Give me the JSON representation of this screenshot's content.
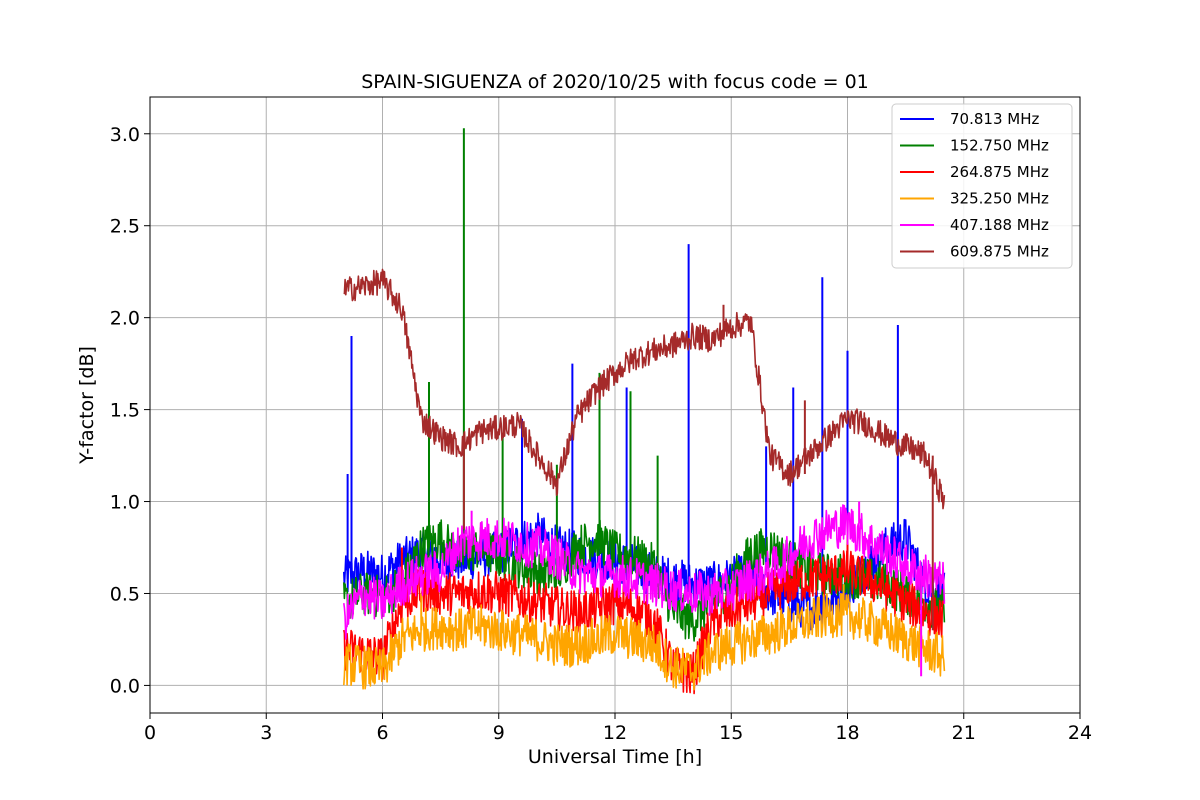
{
  "chart_data": {
    "type": "line",
    "title": "SPAIN-SIGUENZA of 2020/10/25 with focus code = 01",
    "xlabel": "Universal Time [h]",
    "ylabel": "Y-factor [dB]",
    "xlim": [
      0,
      24
    ],
    "ylim": [
      -0.15,
      3.2
    ],
    "xticks": [
      0,
      3,
      6,
      9,
      12,
      15,
      18,
      21,
      24
    ],
    "xtick_labels": [
      "0",
      "3",
      "6",
      "9",
      "12",
      "15",
      "18",
      "21",
      "24"
    ],
    "yticks": [
      0.0,
      0.5,
      1.0,
      1.5,
      2.0,
      2.5,
      3.0
    ],
    "ytick_labels": [
      "0.0",
      "0.5",
      "1.0",
      "1.5",
      "2.0",
      "2.5",
      "3.0"
    ],
    "grid": true,
    "legend_position": "top-right",
    "x": [
      5.0,
      5.5,
      6.0,
      6.5,
      7.0,
      7.5,
      8.0,
      8.5,
      9.0,
      9.5,
      10.0,
      10.5,
      11.0,
      11.5,
      12.0,
      12.5,
      13.0,
      13.5,
      14.0,
      14.5,
      15.0,
      15.5,
      16.0,
      16.5,
      17.0,
      17.5,
      18.0,
      18.5,
      19.0,
      19.5,
      20.0,
      20.5
    ],
    "series": [
      {
        "name": " 70.813 MHz",
        "color": "#0000ff",
        "values": [
          0.58,
          0.62,
          0.6,
          0.68,
          0.72,
          0.7,
          0.68,
          0.7,
          0.72,
          0.78,
          0.82,
          0.75,
          0.72,
          0.7,
          0.68,
          0.65,
          0.6,
          0.58,
          0.55,
          0.55,
          0.58,
          0.6,
          0.5,
          0.45,
          0.42,
          0.45,
          0.52,
          0.65,
          0.75,
          0.8,
          0.55,
          0.5
        ],
        "spikes": [
          [
            5.2,
            1.9
          ],
          [
            5.1,
            1.15
          ],
          [
            10.9,
            1.75
          ],
          [
            13.9,
            2.4
          ],
          [
            17.35,
            2.22
          ],
          [
            19.3,
            1.96
          ],
          [
            18.0,
            1.82
          ],
          [
            16.6,
            1.62
          ],
          [
            15.9,
            1.3
          ],
          [
            12.3,
            1.62
          ],
          [
            9.6,
            1.45
          ]
        ]
      },
      {
        "name": "152.750 MHz",
        "color": "#008000",
        "values": [
          0.45,
          0.5,
          0.48,
          0.55,
          0.75,
          0.8,
          0.7,
          0.75,
          0.7,
          0.65,
          0.62,
          0.6,
          0.75,
          0.8,
          0.72,
          0.7,
          0.65,
          0.4,
          0.35,
          0.45,
          0.55,
          0.72,
          0.75,
          0.68,
          0.62,
          0.6,
          0.6,
          0.58,
          0.55,
          0.5,
          0.45,
          0.4
        ],
        "spikes": [
          [
            8.1,
            3.03
          ],
          [
            7.2,
            1.65
          ],
          [
            11.6,
            1.7
          ],
          [
            12.4,
            1.6
          ],
          [
            13.1,
            1.25
          ],
          [
            9.1,
            1.35
          ],
          [
            10.5,
            1.2
          ]
        ]
      },
      {
        "name": "264.875 MHz",
        "color": "#ff0000",
        "values": [
          0.2,
          0.18,
          0.15,
          0.45,
          0.52,
          0.5,
          0.5,
          0.52,
          0.5,
          0.48,
          0.45,
          0.42,
          0.4,
          0.42,
          0.45,
          0.42,
          0.35,
          0.1,
          0.05,
          0.35,
          0.4,
          0.45,
          0.5,
          0.55,
          0.58,
          0.6,
          0.62,
          0.58,
          0.52,
          0.45,
          0.4,
          0.35
        ],
        "spikes": [
          [
            6.5,
            0.75
          ],
          [
            18.0,
            0.85
          ],
          [
            12.0,
            0.6
          ]
        ]
      },
      {
        "name": "325.250 MHz",
        "color": "#ffa500",
        "values": [
          0.12,
          0.1,
          0.08,
          0.25,
          0.3,
          0.32,
          0.3,
          0.32,
          0.3,
          0.28,
          0.25,
          0.22,
          0.22,
          0.25,
          0.28,
          0.25,
          0.22,
          0.1,
          0.08,
          0.18,
          0.22,
          0.25,
          0.28,
          0.32,
          0.35,
          0.38,
          0.38,
          0.35,
          0.3,
          0.25,
          0.2,
          0.15
        ],
        "spikes": [
          [
            7.0,
            0.5
          ],
          [
            17.9,
            0.55
          ]
        ]
      },
      {
        "name": "407.188 MHz",
        "color": "#ff00ff",
        "values": [
          0.35,
          0.5,
          0.45,
          0.55,
          0.6,
          0.62,
          0.78,
          0.8,
          0.8,
          0.78,
          0.75,
          0.7,
          0.62,
          0.6,
          0.6,
          0.58,
          0.55,
          0.52,
          0.5,
          0.5,
          0.52,
          0.58,
          0.62,
          0.7,
          0.8,
          0.85,
          0.88,
          0.8,
          0.72,
          0.65,
          0.6,
          0.55
        ],
        "spikes": [
          [
            8.3,
            0.95
          ],
          [
            18.3,
            1.0
          ],
          [
            19.9,
            0.05
          ]
        ]
      },
      {
        "name": "609.875 MHz",
        "color": "#a52a2a",
        "values": [
          2.15,
          2.17,
          2.2,
          2.05,
          1.45,
          1.35,
          1.3,
          1.38,
          1.4,
          1.42,
          1.25,
          1.1,
          1.45,
          1.6,
          1.7,
          1.78,
          1.82,
          1.85,
          1.9,
          1.88,
          1.95,
          1.98,
          1.25,
          1.15,
          1.25,
          1.35,
          1.45,
          1.42,
          1.35,
          1.3,
          1.25,
          1.0
        ],
        "spikes": [
          [
            14.8,
            2.07
          ],
          [
            8.1,
            0.85
          ],
          [
            20.2,
            0.3
          ],
          [
            16.9,
            1.55
          ]
        ]
      }
    ]
  }
}
